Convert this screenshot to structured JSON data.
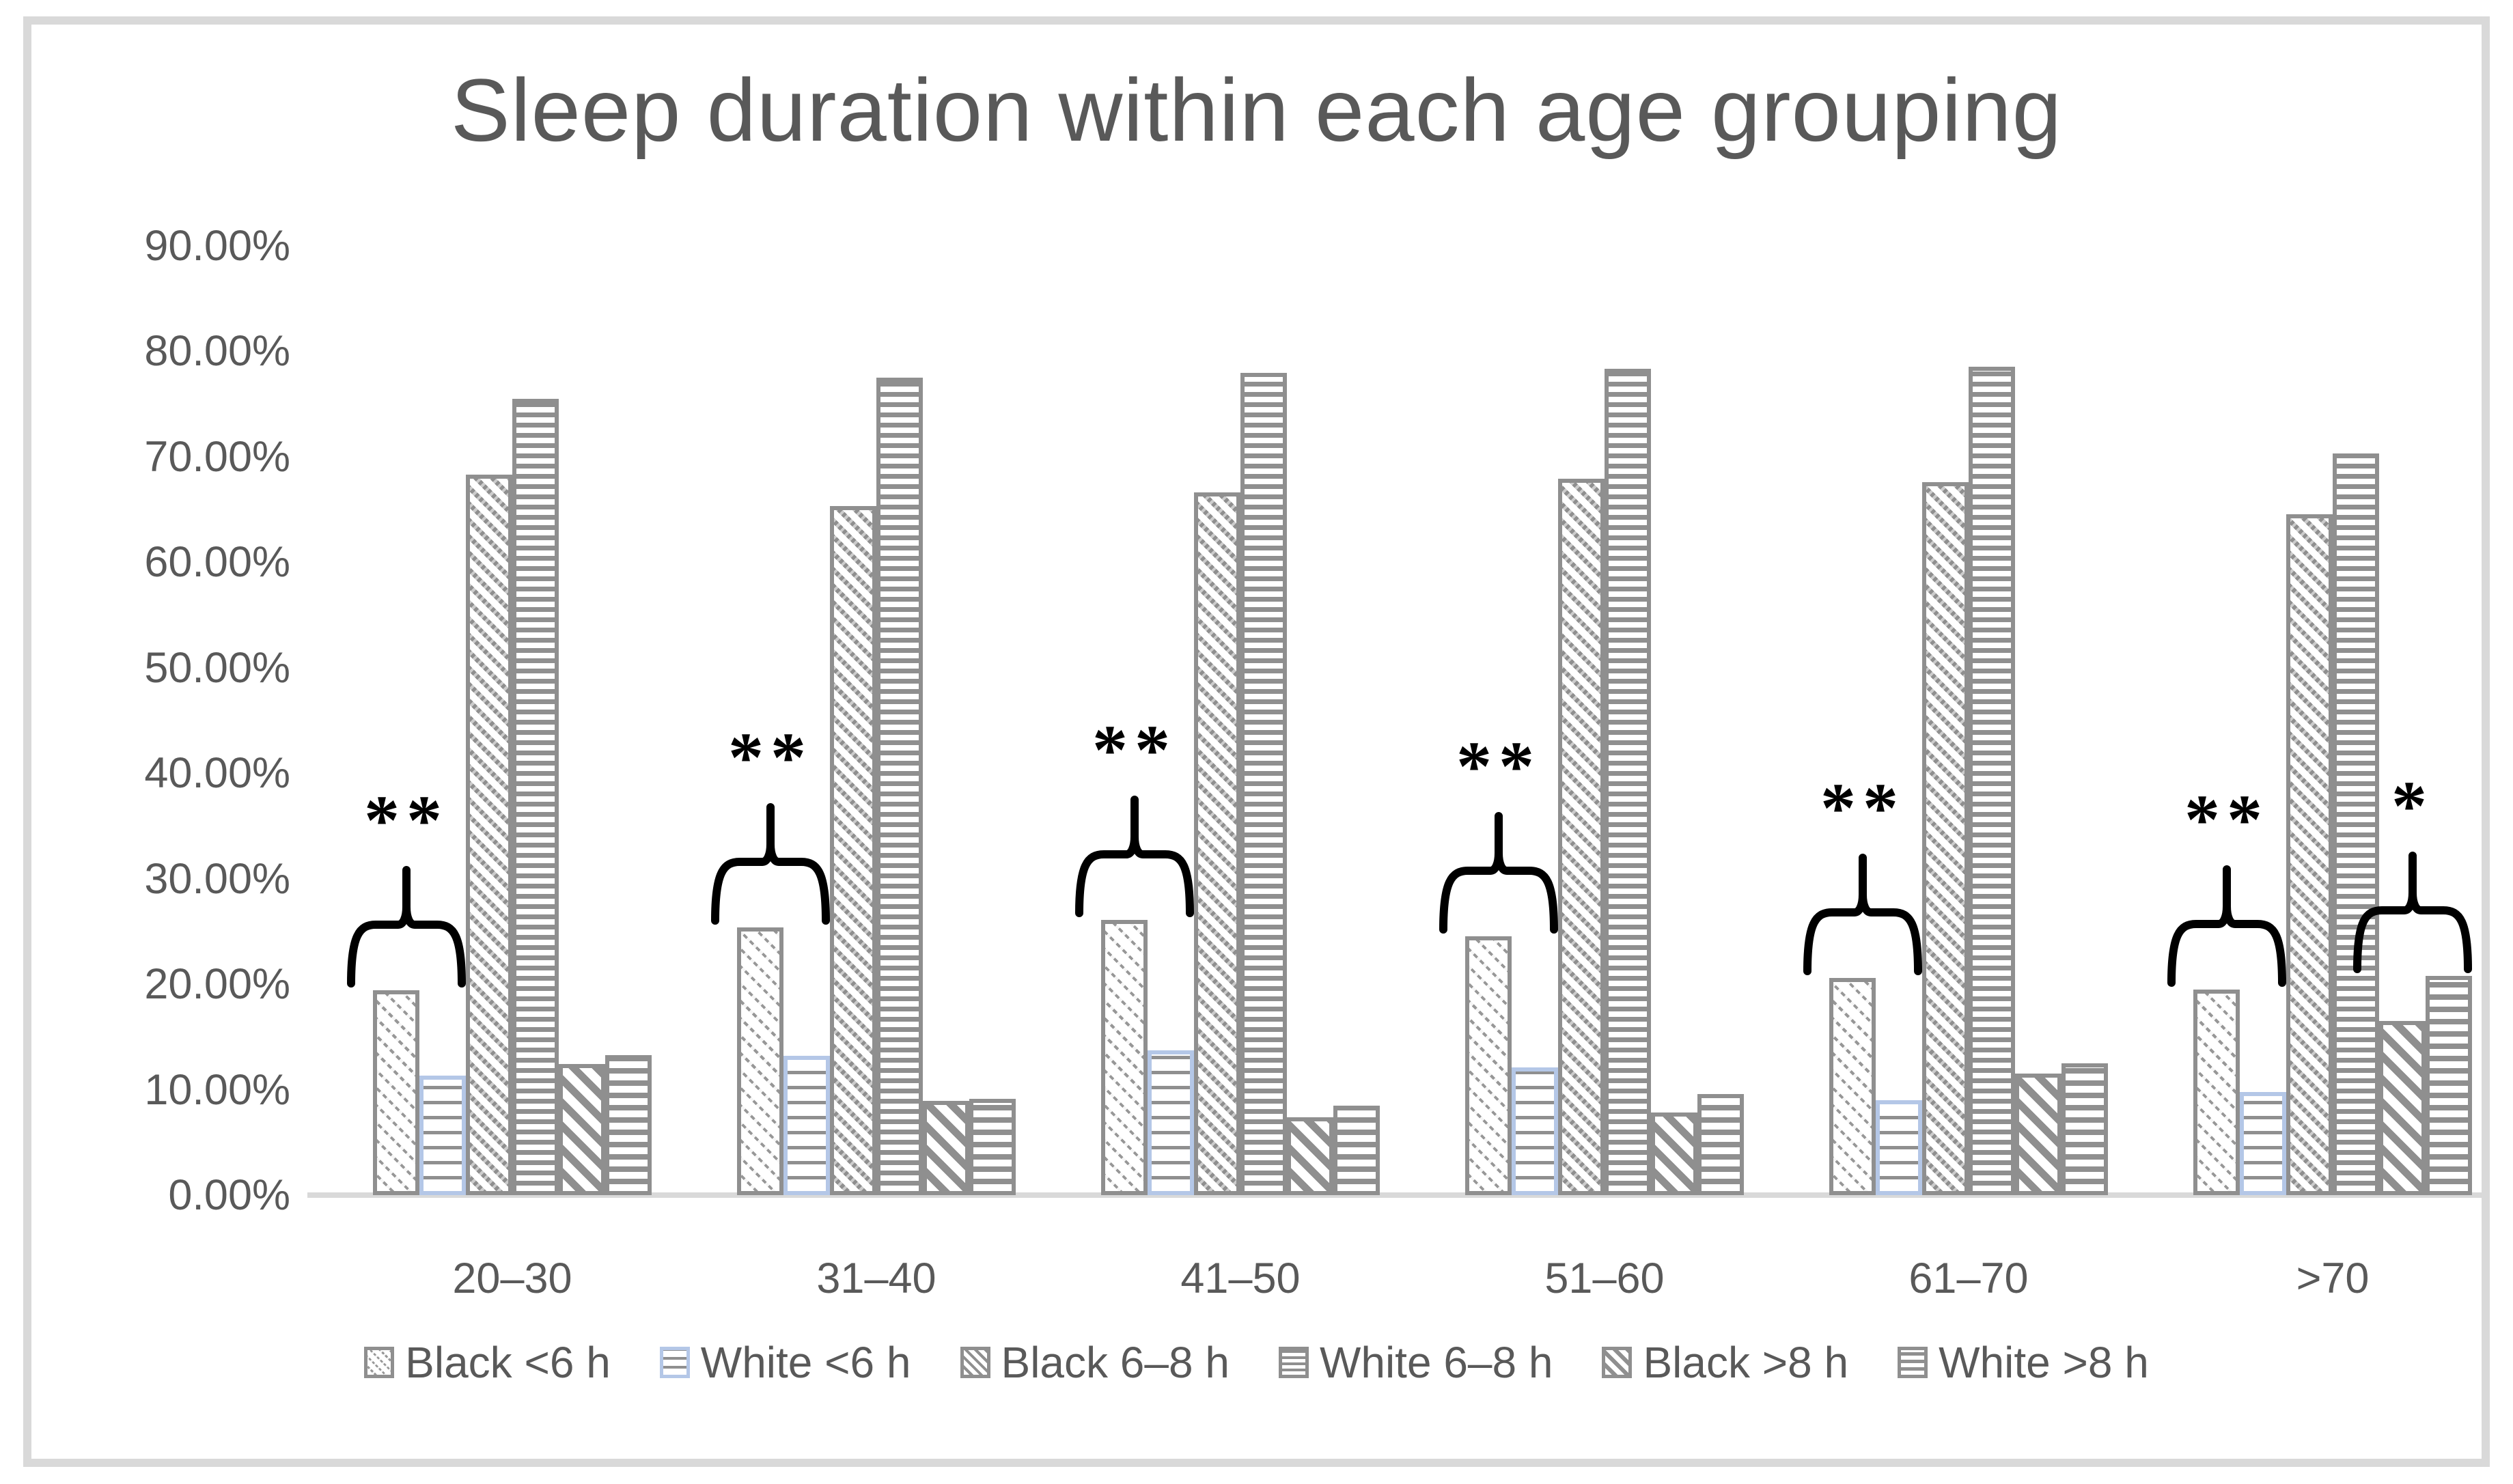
{
  "chart_data": {
    "type": "bar",
    "title": "Sleep duration within each age grouping",
    "categories": [
      "20–30",
      "31–40",
      "41–50",
      "51–60",
      "61–70",
      ">70"
    ],
    "series": [
      {
        "name": "Black <6 h",
        "pattern": "diag-dotted-thin",
        "border": "gray",
        "values": [
          19.4,
          25.4,
          26.1,
          24.5,
          20.6,
          19.5
        ]
      },
      {
        "name": "White <6 h",
        "pattern": "horiz-thin-blue",
        "border": "blue",
        "values": [
          11.3,
          13.2,
          13.7,
          12.1,
          9.0,
          9.8
        ]
      },
      {
        "name": "Black 6–8 h",
        "pattern": "diag-medium",
        "border": "gray",
        "values": [
          68.3,
          65.3,
          66.6,
          67.9,
          67.6,
          64.5
        ]
      },
      {
        "name": "White 6–8 h",
        "pattern": "horiz-dense",
        "border": "gray",
        "values": [
          75.5,
          77.5,
          77.9,
          78.3,
          78.5,
          70.3
        ]
      },
      {
        "name": "Black >8 h",
        "pattern": "diag-wide",
        "border": "gray",
        "values": [
          12.4,
          8.9,
          7.4,
          7.8,
          11.5,
          16.5
        ]
      },
      {
        "name": "White >8 h",
        "pattern": "horiz-thick",
        "border": "gray",
        "values": [
          13.3,
          9.1,
          8.5,
          9.6,
          12.5,
          20.8
        ]
      }
    ],
    "y_axis": {
      "tick_labels": [
        "0.00%",
        "10.00%",
        "20.00%",
        "30.00%",
        "40.00%",
        "50.00%",
        "60.00%",
        "70.00%",
        "80.00%",
        "90.00%"
      ],
      "ylim": [
        0,
        90
      ],
      "grid": false
    },
    "legend_position": "bottom",
    "annotations": [
      {
        "category_index": 0,
        "series_indexes": [
          0,
          1
        ],
        "label": "**"
      },
      {
        "category_index": 1,
        "series_indexes": [
          0,
          1
        ],
        "label": "**"
      },
      {
        "category_index": 2,
        "series_indexes": [
          0,
          1
        ],
        "label": "**"
      },
      {
        "category_index": 3,
        "series_indexes": [
          0,
          1
        ],
        "label": "**"
      },
      {
        "category_index": 4,
        "series_indexes": [
          0,
          1
        ],
        "label": "**"
      },
      {
        "category_index": 5,
        "series_indexes": [
          0,
          1
        ],
        "label": "**"
      },
      {
        "category_index": 5,
        "series_indexes": [
          4,
          5
        ],
        "label": "*"
      }
    ],
    "colors": {
      "stripe_gray": "#8f8f8f",
      "bar_border_gray": "#8f8f8f",
      "bar_border_blue": "#b4c7e7",
      "axis_line": "#d9d9d9",
      "text": "#595959",
      "annotation": "#000000",
      "frame_border": "#d9d9d9",
      "background": "#ffffff"
    }
  }
}
